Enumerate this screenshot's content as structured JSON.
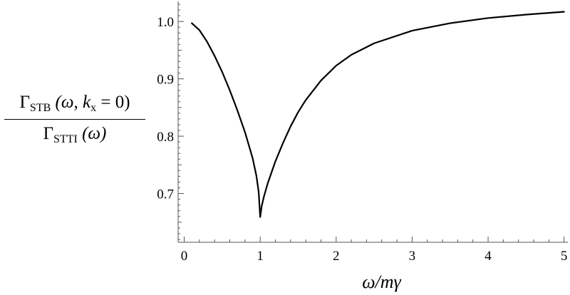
{
  "chart_data": {
    "type": "line",
    "title": "",
    "xlabel": "ω/mγ",
    "ylabel": {
      "numerator": {
        "symbol": "Γ",
        "subscript": "STB",
        "args": "(ω,  k",
        "arg_sub": "x",
        "arg_tail": " = 0)"
      },
      "denominator": {
        "symbol": "Γ",
        "subscript": "STTI",
        "args": "(ω)"
      }
    },
    "xlim": [
      -0.08,
      5.05
    ],
    "ylim": [
      0.615,
      1.035
    ],
    "xticks": [
      0,
      1,
      2,
      3,
      4,
      5
    ],
    "xtick_labels": [
      "0",
      "1",
      "2",
      "3",
      "4",
      "5"
    ],
    "yticks": [
      0.7,
      0.8,
      0.9,
      1.0
    ],
    "ytick_labels": [
      "0.7",
      "0.8",
      "0.9",
      "1.0"
    ],
    "grid": false,
    "series": [
      {
        "color": "#000000",
        "x": [
          0.1,
          0.2,
          0.3,
          0.4,
          0.5,
          0.6,
          0.7,
          0.8,
          0.9,
          0.95,
          0.98,
          1.0,
          1.02,
          1.05,
          1.1,
          1.2,
          1.3,
          1.4,
          1.5,
          1.6,
          1.8,
          2.0,
          2.2,
          2.5,
          3.0,
          3.5,
          4.0,
          4.5,
          5.0
        ],
        "y": [
          0.997,
          0.985,
          0.965,
          0.94,
          0.912,
          0.88,
          0.845,
          0.807,
          0.762,
          0.731,
          0.703,
          0.659,
          0.678,
          0.695,
          0.718,
          0.756,
          0.788,
          0.817,
          0.842,
          0.863,
          0.897,
          0.923,
          0.942,
          0.962,
          0.984,
          0.997,
          1.006,
          1.012,
          1.017
        ]
      }
    ]
  }
}
